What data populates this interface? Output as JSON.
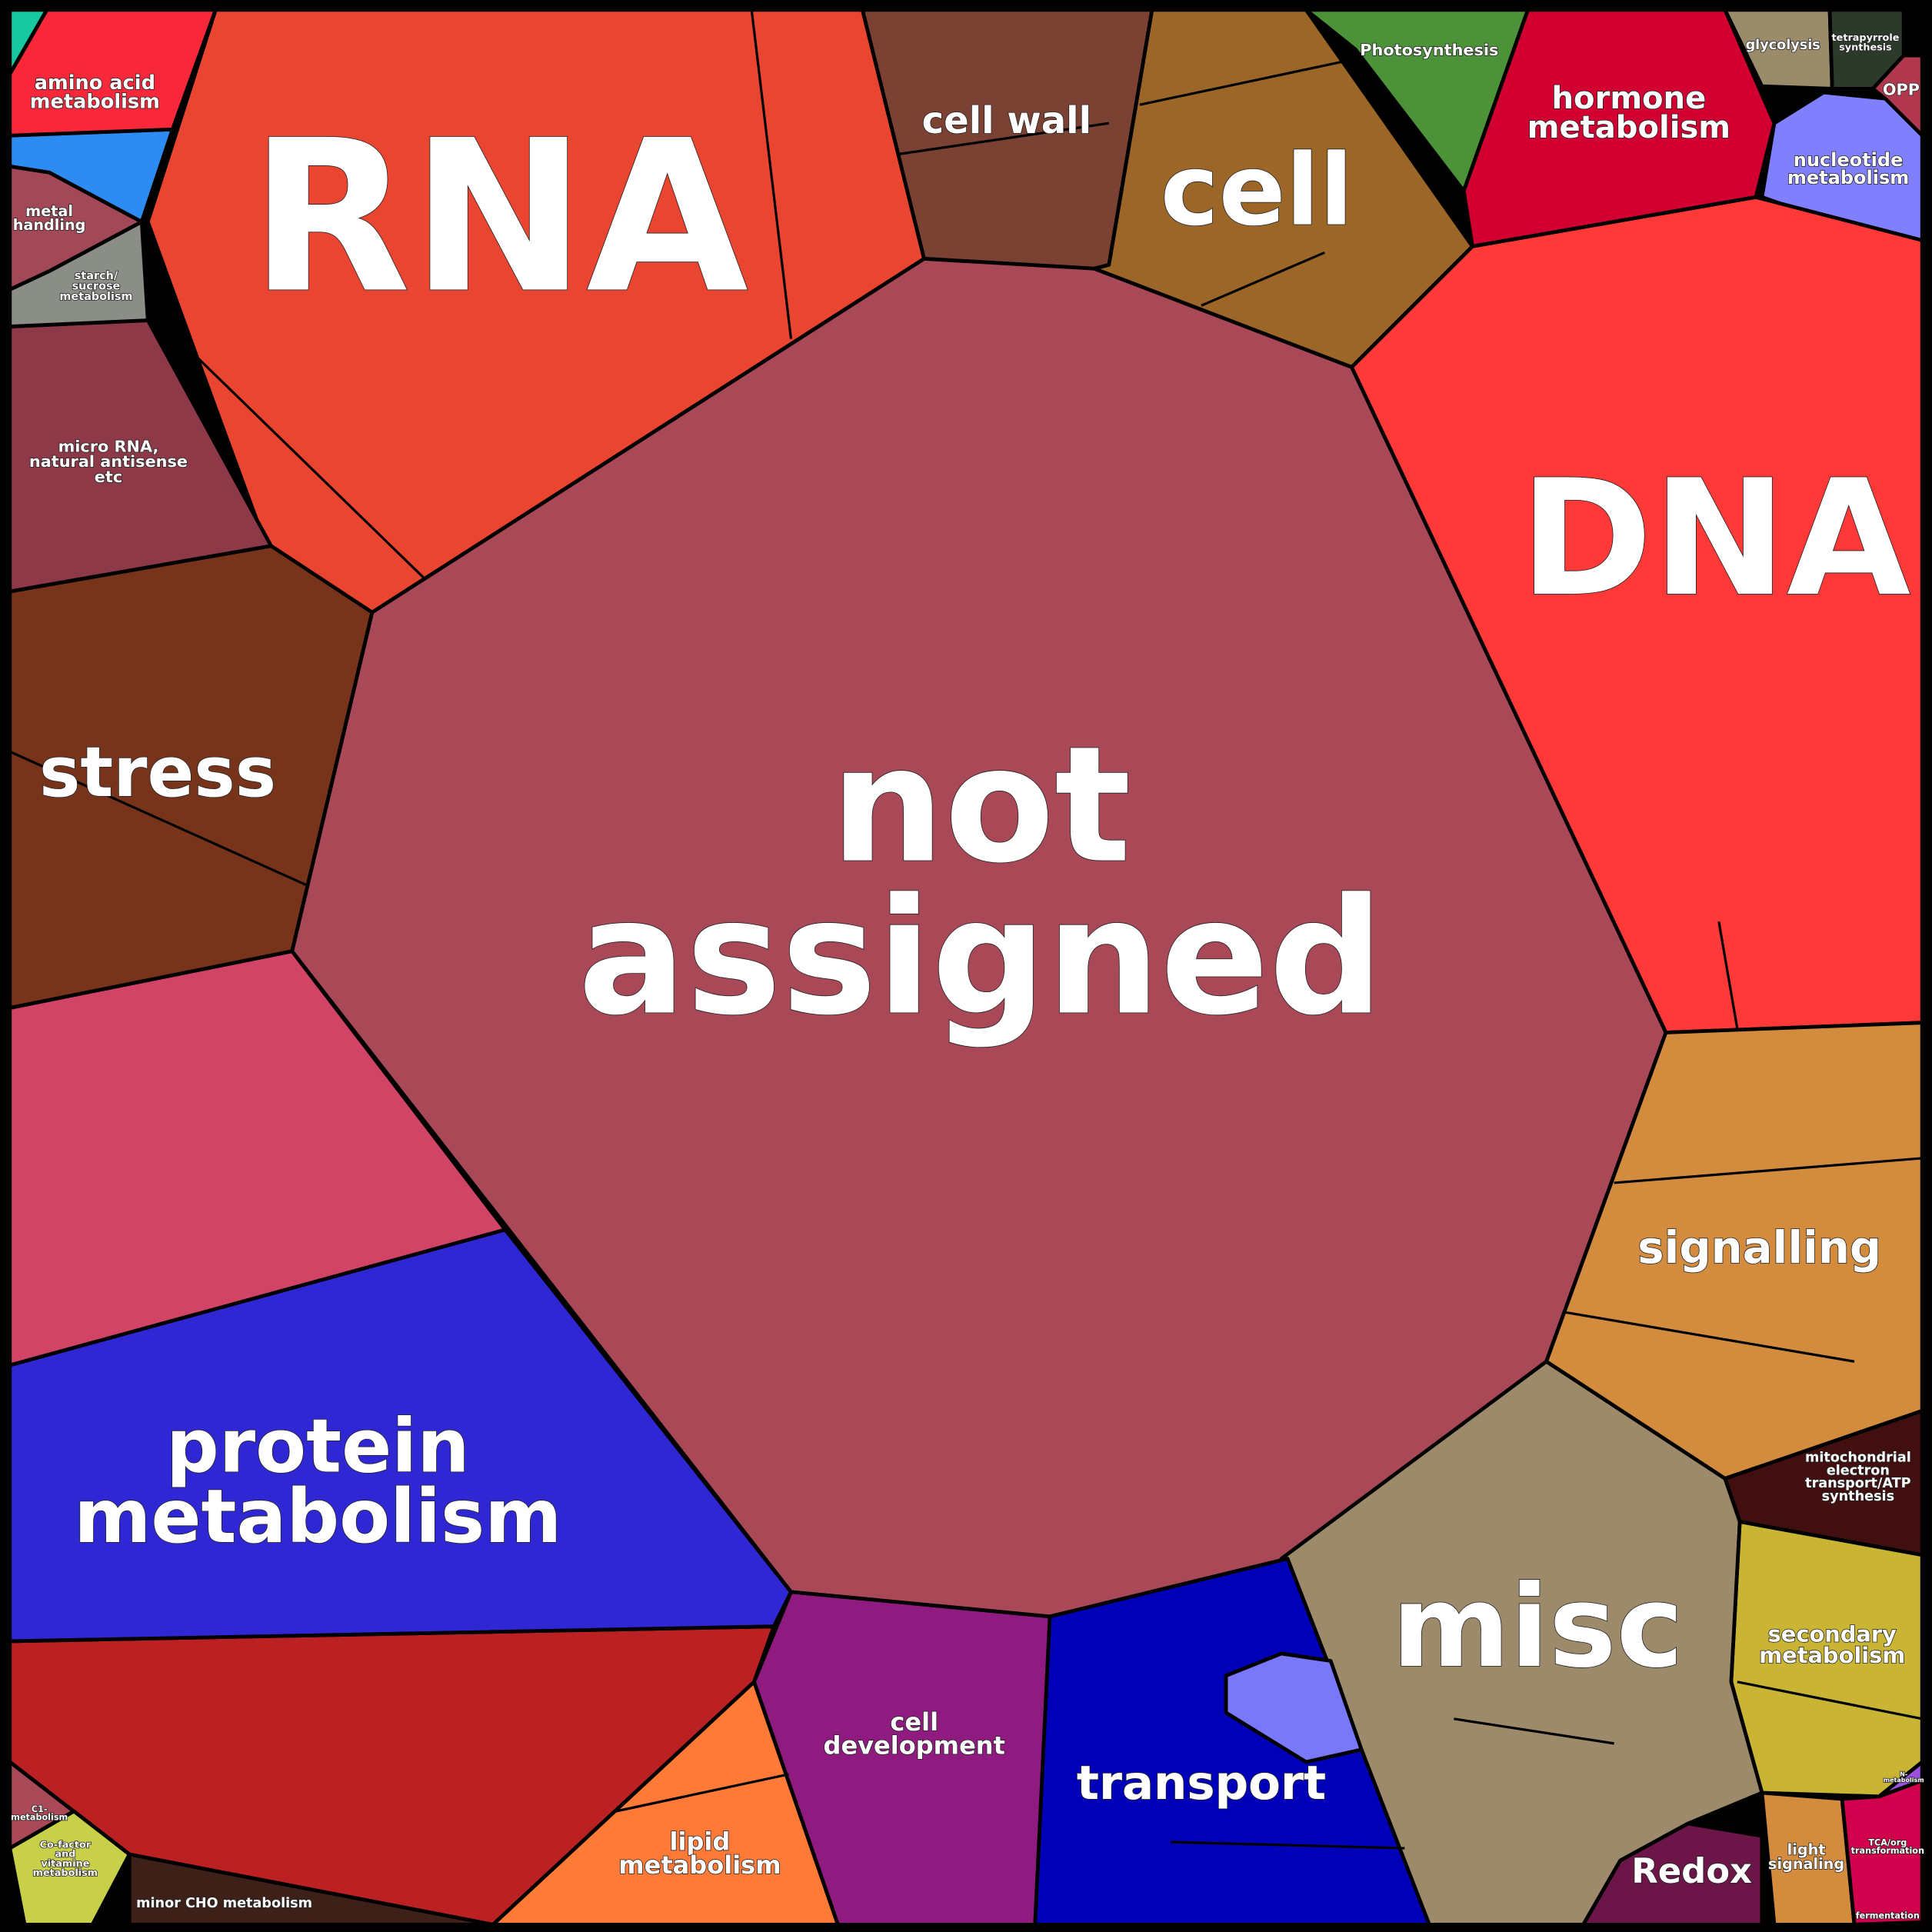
{
  "cells": [
    {
      "lines": [
        "RNA"
      ]
    },
    {
      "lines": [
        "DNA"
      ]
    },
    {
      "lines": [
        "not",
        "assigned"
      ]
    },
    {
      "lines": [
        "cell wall"
      ]
    },
    {
      "lines": [
        "cell"
      ]
    },
    {
      "lines": [
        "Photosynthesis"
      ]
    },
    {
      "lines": [
        "hormone",
        "metabolism"
      ]
    },
    {
      "lines": [
        "glycolysis"
      ]
    },
    {
      "lines": [
        "tetrapyrrole",
        "synthesis"
      ]
    },
    {
      "lines": [
        "OPP"
      ]
    },
    {
      "lines": [
        "nucleotide",
        "metabolism"
      ]
    },
    {
      "lines": [
        "amino acid",
        "metabolism"
      ]
    },
    {
      "lines": [
        "metal",
        "handling"
      ]
    },
    {
      "lines": [
        "starch/",
        "sucrose",
        "metabolism"
      ]
    },
    {
      "lines": [
        "micro RNA,",
        "natural antisense",
        "etc"
      ]
    },
    {
      "lines": [
        "stress"
      ]
    },
    {
      "lines": [
        "protein",
        "metabolism"
      ]
    },
    {
      "lines": [
        "signalling"
      ]
    },
    {
      "lines": [
        "mitochondrial",
        "electron",
        "transport/ATP",
        "synthesis"
      ]
    },
    {
      "lines": [
        "secondary",
        "metabolism"
      ]
    },
    {
      "lines": [
        "misc"
      ]
    },
    {
      "lines": [
        "transport"
      ]
    },
    {
      "lines": [
        "cell",
        "development"
      ]
    },
    {
      "lines": [
        "lipid",
        "metabolism"
      ]
    },
    {
      "lines": [
        "Redox"
      ]
    },
    {
      "lines": [
        "light",
        "signaling"
      ]
    },
    {
      "lines": [
        "TCA/org",
        "transformation"
      ]
    },
    {
      "lines": [
        "fermentation"
      ]
    },
    {
      "lines": [
        "N-",
        "metabolism"
      ]
    },
    {
      "lines": [
        "C1-",
        "metabolism"
      ]
    },
    {
      "lines": [
        "Co-factor",
        "and",
        "vitamine",
        "metabolism"
      ]
    },
    {
      "lines": [
        "minor CHO metabolism"
      ]
    }
  ]
}
